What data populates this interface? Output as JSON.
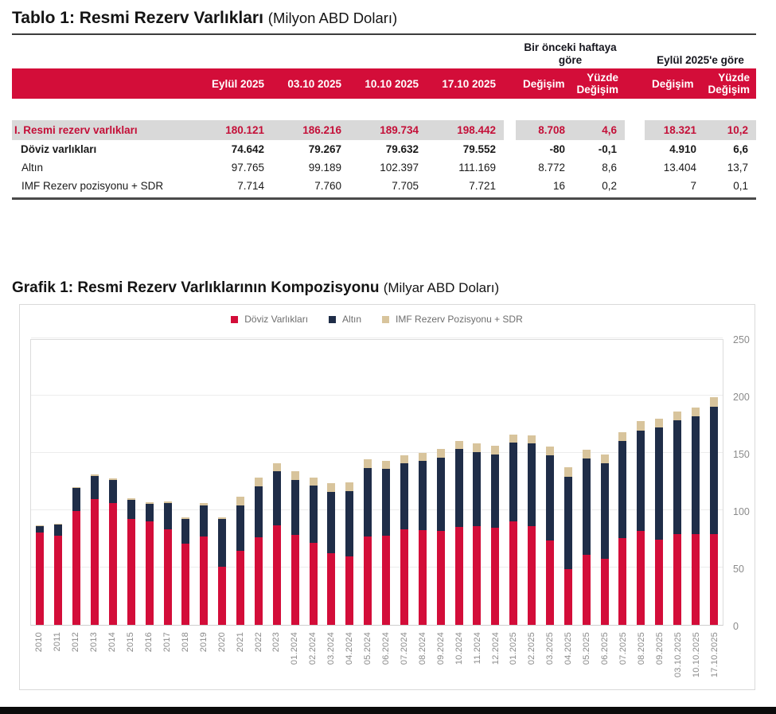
{
  "colors": {
    "accent_red": "#d30d39",
    "navy": "#1f2d48",
    "tan": "#d8c49c",
    "row_highlight": "#d9d9d9",
    "footer_bar": "#0b0b0b"
  },
  "table": {
    "title": "Tablo 1: Resmi Rezerv Varlıkları",
    "title_suffix": "(Milyon ABD Doları)",
    "group_headers": {
      "week": "Bir önceki haftaya göre",
      "september": "Eylül 2025'e göre"
    },
    "date_columns": [
      "Eylül 2025",
      "03.10 2025",
      "10.10 2025",
      "17.10 2025"
    ],
    "change_columns": [
      "Değişim",
      "Yüzde Değişim"
    ],
    "rows": [
      {
        "label": "I. Resmi rezerv varlıkları",
        "style": "total",
        "values": [
          "180.121",
          "186.216",
          "189.734",
          "198.442"
        ],
        "week": [
          "8.708",
          "4,6"
        ],
        "sept": [
          "18.321",
          "10,2"
        ]
      },
      {
        "label": "Döviz varlıkları",
        "style": "bold",
        "values": [
          "74.642",
          "79.267",
          "79.632",
          "79.552"
        ],
        "week": [
          "-80",
          "-0,1"
        ],
        "sept": [
          "4.910",
          "6,6"
        ]
      },
      {
        "label": "Altın",
        "style": "normal",
        "values": [
          "97.765",
          "99.189",
          "102.397",
          "111.169"
        ],
        "week": [
          "8.772",
          "8,6"
        ],
        "sept": [
          "13.404",
          "13,7"
        ]
      },
      {
        "label": "IMF Rezerv pozisyonu + SDR",
        "style": "normal",
        "values": [
          "7.714",
          "7.760",
          "7.705",
          "7.721"
        ],
        "week": [
          "16",
          "0,2"
        ],
        "sept": [
          "7",
          "0,1"
        ]
      }
    ]
  },
  "chart": {
    "title": "Grafik 1: Resmi Rezerv Varlıklarının Kompozisyonu",
    "title_suffix": "(Milyar ABD Doları)"
  },
  "chart_data": {
    "type": "bar",
    "stacked": true,
    "title": "Grafik 1: Resmi Rezerv Varlıklarının Kompozisyonu (Milyar ABD Doları)",
    "ylim": [
      0,
      250
    ],
    "yticks": [
      0,
      50,
      100,
      150,
      200,
      250
    ],
    "grid": true,
    "legend_position": "top",
    "categories": [
      "2010",
      "2011",
      "2012",
      "2013",
      "2014",
      "2015",
      "2016",
      "2017",
      "2018",
      "2019",
      "2020",
      "2021",
      "2022",
      "2023",
      "01.2024",
      "02.2024",
      "03.2024",
      "04.2024",
      "05.2024",
      "06.2024",
      "07.2024",
      "08.2024",
      "09.2024",
      "10.2024",
      "11.2024",
      "12.2024",
      "01.2025",
      "02.2025",
      "03.2025",
      "04.2025",
      "05.2025",
      "06.2025",
      "07.2025",
      "08.2025",
      "09.2025",
      "03.10.2025",
      "10.10.2025",
      "17.10.2025"
    ],
    "series": [
      {
        "name": "Döviz Varlıkları",
        "color": "#d30d39",
        "values": [
          81,
          78,
          99.5,
          110,
          106.5,
          92.5,
          90.5,
          83.5,
          71,
          77.5,
          51,
          65,
          76.5,
          87,
          78.7,
          71.8,
          62.7,
          59.7,
          77.1,
          78,
          83.8,
          82.6,
          82.2,
          85.6,
          86.3,
          84.9,
          90.2,
          86.3,
          73.6,
          48.7,
          61.6,
          58,
          76,
          82.4,
          74.6,
          79.3,
          79.6,
          79.6
        ]
      },
      {
        "name": "Altın",
        "color": "#1f2d48",
        "values": [
          5.5,
          10,
          20,
          20,
          20,
          16.5,
          15.5,
          23,
          21.5,
          27,
          41.5,
          39.5,
          44.5,
          47,
          48.2,
          49.9,
          53.5,
          57.4,
          59.7,
          58.1,
          57.4,
          60.4,
          63.8,
          68.2,
          64.8,
          63.9,
          68.9,
          72.3,
          74.4,
          80.8,
          83.6,
          83,
          84.7,
          87.5,
          97.8,
          99.2,
          102.4,
          111.2
        ]
      },
      {
        "name": "IMF Rezerv Pozisyonu + SDR",
        "color": "#d8c49c",
        "values": [
          0.5,
          0.5,
          0.8,
          1.3,
          1.3,
          1.3,
          1.3,
          1.3,
          1.5,
          1.7,
          1.5,
          7.7,
          8,
          7.5,
          7.4,
          6.9,
          7.8,
          7.6,
          7.8,
          7.4,
          6.9,
          7.3,
          7.4,
          6.9,
          7.3,
          7.3,
          7.3,
          6.9,
          8,
          8.1,
          8,
          8.1,
          7.6,
          8.1,
          7.7,
          7.8,
          7.7,
          7.7
        ]
      }
    ]
  }
}
